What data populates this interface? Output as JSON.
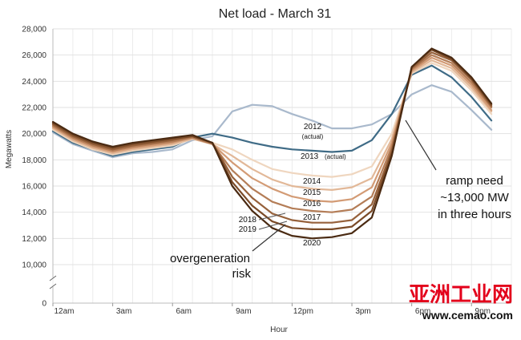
{
  "chart_data": {
    "type": "line",
    "title": "Net load - March 31",
    "xlabel": "Hour",
    "ylabel": "Megawatts",
    "xlim": [
      0,
      23
    ],
    "ylim": [
      10000,
      28000
    ],
    "y_break": true,
    "y_bottom_tick": "0",
    "y_ticks": [
      "10,000",
      "12,000",
      "14,000",
      "16,000",
      "18,000",
      "20,000",
      "22,000",
      "24,000",
      "26,000",
      "28,000"
    ],
    "x_ticks": [
      {
        "value": 0,
        "label": "12am"
      },
      {
        "value": 3,
        "label": "3am"
      },
      {
        "value": 6,
        "label": "6am"
      },
      {
        "value": 9,
        "label": "9am"
      },
      {
        "value": 12,
        "label": "12pm"
      },
      {
        "value": 15,
        "label": "3pm"
      },
      {
        "value": 18,
        "label": "6pm"
      },
      {
        "value": 21,
        "label": "9pm"
      }
    ],
    "grid": true,
    "series": [
      {
        "name": "2012",
        "sublabel": "(actual)",
        "color": "#a9b9cc",
        "values": [
          20100,
          19200,
          18700,
          18200,
          18500,
          18600,
          18800,
          19500,
          19800,
          21700,
          22200,
          22100,
          21500,
          21000,
          20400,
          20400,
          20700,
          21500,
          23000,
          23700,
          23200,
          21800,
          20300
        ]
      },
      {
        "name": "2013",
        "sublabel": "(actual)",
        "color": "#3f6b86",
        "values": [
          20200,
          19300,
          18800,
          18300,
          18600,
          18800,
          19000,
          19700,
          20000,
          19700,
          19300,
          19000,
          18800,
          18700,
          18600,
          18700,
          19500,
          21500,
          24500,
          25200,
          24300,
          22800,
          21000
        ]
      },
      {
        "name": "2014",
        "color": "#efd6bf",
        "values": [
          20300,
          19400,
          18800,
          18400,
          18700,
          18900,
          19100,
          19600,
          19300,
          18800,
          18000,
          17300,
          17000,
          16800,
          16700,
          16900,
          17500,
          20000,
          24600,
          25400,
          24800,
          23300,
          21500
        ]
      },
      {
        "name": "2015",
        "color": "#e2b898",
        "values": [
          20400,
          19500,
          18900,
          18500,
          18800,
          19000,
          19200,
          19600,
          19200,
          18300,
          17300,
          16500,
          16000,
          15800,
          15700,
          15900,
          16600,
          19600,
          24700,
          25600,
          25000,
          23500,
          21700
        ]
      },
      {
        "name": "2016",
        "color": "#d39b75",
        "values": [
          20500,
          19600,
          19000,
          18600,
          18900,
          19100,
          19300,
          19700,
          19200,
          17800,
          16600,
          15800,
          15200,
          14900,
          14800,
          15000,
          15900,
          19300,
          24800,
          25800,
          25200,
          23700,
          21800
        ]
      },
      {
        "name": "2017",
        "color": "#b47d57",
        "values": [
          20600,
          19700,
          19100,
          18700,
          19000,
          19200,
          19400,
          19700,
          19200,
          17200,
          15800,
          14800,
          14300,
          14100,
          14000,
          14200,
          15200,
          19000,
          24900,
          26000,
          25400,
          23900,
          22000
        ]
      },
      {
        "name": "2018",
        "color": "#96613b",
        "values": [
          20700,
          19800,
          19200,
          18800,
          19100,
          19300,
          19500,
          19800,
          19300,
          16700,
          15100,
          13900,
          13400,
          13200,
          13200,
          13400,
          14600,
          18700,
          25000,
          26200,
          25600,
          24100,
          22100
        ]
      },
      {
        "name": "2019",
        "color": "#7a4a27",
        "values": [
          20800,
          19900,
          19300,
          18900,
          19200,
          19400,
          19600,
          19800,
          19300,
          16300,
          14500,
          13300,
          12800,
          12700,
          12700,
          12900,
          14100,
          18500,
          25100,
          26400,
          25700,
          24200,
          22200
        ]
      },
      {
        "name": "2020",
        "color": "#4a2a12",
        "values": [
          20900,
          20000,
          19400,
          19000,
          19300,
          19500,
          19700,
          19900,
          19300,
          16000,
          14100,
          12800,
          12200,
          12000,
          12100,
          12400,
          13600,
          18300,
          25100,
          26500,
          25800,
          24300,
          22300
        ]
      }
    ],
    "annotations": [
      {
        "text": "ramp need",
        "style": "large"
      },
      {
        "text": "~13,000 MW",
        "style": "large"
      },
      {
        "text": "in three hours",
        "style": "large"
      },
      {
        "text": "overgeneration",
        "style": "large"
      },
      {
        "text": "risk",
        "style": "large"
      }
    ]
  },
  "watermark": {
    "chinese": "亚洲工业网",
    "url": "www.cemao.com"
  }
}
